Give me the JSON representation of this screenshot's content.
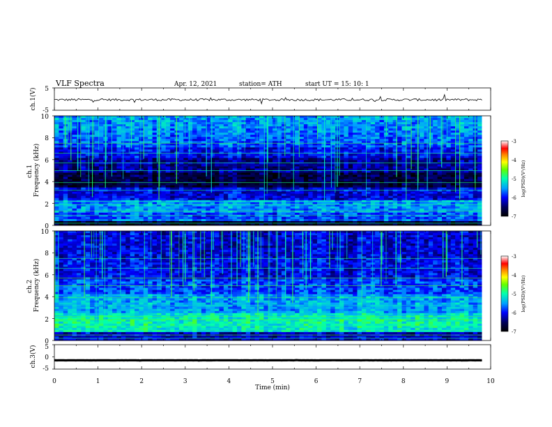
{
  "header": {
    "title": "VLF  Spectra",
    "date": "Apr. 12, 2021",
    "station": "station= ATH",
    "start_ut": "start  UT  =    15: 10: 1"
  },
  "chart_data": [
    {
      "type": "line",
      "name": "ch1-voltage",
      "ylabel": "ch.1(V)",
      "ylim": [
        -5,
        5
      ],
      "yticks": [
        "5",
        "-5"
      ],
      "xlim": [
        0,
        10
      ],
      "mean_level": -0.3
    },
    {
      "type": "heatmap",
      "name": "ch1-spectrogram",
      "ylabel": "ch.1\nFrequency  (kHz)",
      "ylim": [
        0,
        10
      ],
      "yticks": [
        "10",
        "8",
        "6",
        "4",
        "2",
        "0"
      ],
      "xlim": [
        0,
        10
      ],
      "data_end_min": 9.8,
      "colorbar": {
        "label": "log(PSD)(V²/Hz)",
        "range": [
          -7,
          -3
        ],
        "ticks": [
          "-3",
          "-4",
          "-5",
          "-6",
          "-7"
        ]
      }
    },
    {
      "type": "heatmap",
      "name": "ch2-spectrogram",
      "ylabel": "ch.2\nFrequency  (kHz)",
      "ylim": [
        0,
        10
      ],
      "yticks": [
        "10",
        "8",
        "6",
        "4",
        "2",
        "0"
      ],
      "xlim": [
        0,
        10
      ],
      "data_end_min": 9.8,
      "colorbar": {
        "label": "log(PSD)(V²/Hz)",
        "range": [
          -7,
          -3
        ],
        "ticks": [
          "-3",
          "-4",
          "-5",
          "-6",
          "-7"
        ]
      }
    },
    {
      "type": "line",
      "name": "ch3-voltage",
      "ylabel": "ch.3(V)",
      "ylim": [
        -5,
        5
      ],
      "yticks": [
        "5",
        "0",
        "-5"
      ],
      "xlim": [
        0,
        10
      ],
      "mean_level": -1.4,
      "xlabel": "Time  (min)",
      "xticks": [
        "0",
        "1",
        "2",
        "3",
        "4",
        "5",
        "6",
        "7",
        "8",
        "9",
        "10"
      ]
    }
  ]
}
